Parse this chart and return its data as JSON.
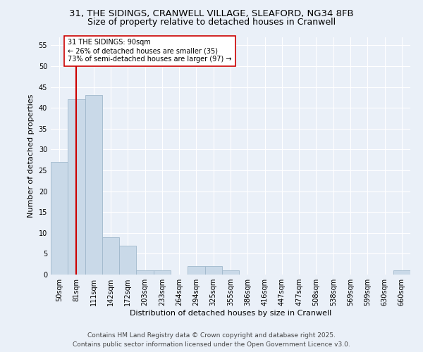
{
  "title_line1": "31, THE SIDINGS, CRANWELL VILLAGE, SLEAFORD, NG34 8FB",
  "title_line2": "Size of property relative to detached houses in Cranwell",
  "xlabel": "Distribution of detached houses by size in Cranwell",
  "ylabel": "Number of detached properties",
  "bar_labels": [
    "50sqm",
    "81sqm",
    "111sqm",
    "142sqm",
    "172sqm",
    "203sqm",
    "233sqm",
    "264sqm",
    "294sqm",
    "325sqm",
    "355sqm",
    "386sqm",
    "416sqm",
    "447sqm",
    "477sqm",
    "508sqm",
    "538sqm",
    "569sqm",
    "599sqm",
    "630sqm",
    "660sqm"
  ],
  "bar_values": [
    27,
    42,
    43,
    9,
    7,
    1,
    1,
    0,
    2,
    2,
    1,
    0,
    0,
    0,
    0,
    0,
    0,
    0,
    0,
    0,
    1
  ],
  "bar_color": "#c9d9e8",
  "bar_edge_color": "#a0b8cc",
  "vline_x": 1,
  "vline_color": "#cc0000",
  "ylim": [
    0,
    57
  ],
  "yticks": [
    0,
    5,
    10,
    15,
    20,
    25,
    30,
    35,
    40,
    45,
    50,
    55
  ],
  "annotation_text": "31 THE SIDINGS: 90sqm\n← 26% of detached houses are smaller (35)\n73% of semi-detached houses are larger (97) →",
  "annotation_box_color": "#ffffff",
  "annotation_box_edge": "#cc0000",
  "footer_line1": "Contains HM Land Registry data © Crown copyright and database right 2025.",
  "footer_line2": "Contains public sector information licensed under the Open Government Licence v3.0.",
  "bg_color": "#eaf0f8",
  "plot_bg_color": "#eaf0f8",
  "grid_color": "#ffffff",
  "title_fontsize": 9.5,
  "subtitle_fontsize": 9,
  "axis_label_fontsize": 8,
  "tick_fontsize": 7,
  "footer_fontsize": 6.5,
  "annot_fontsize": 7
}
